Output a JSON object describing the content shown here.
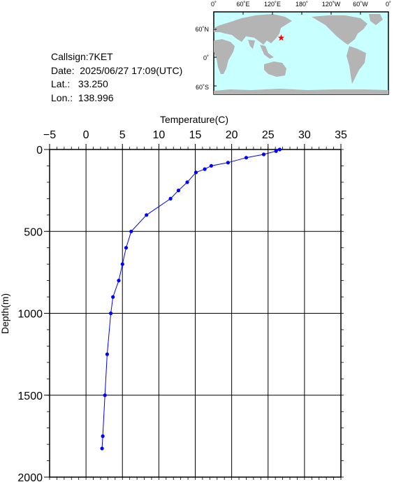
{
  "station": {
    "callsign_text": "Callsign:7KET",
    "date_text": "Date:  2025/06/27 17:09(UTC)",
    "lat_text": "Lat.:   33.250",
    "lon_text": "Lon.:  138.996",
    "callsign": "7KET",
    "date": "2025/06/27 17:09(UTC)",
    "lat": 33.25,
    "lon": 138.996
  },
  "map": {
    "lon_labels": [
      "0˚",
      "60˚E",
      "120˚E",
      "180˚",
      "120˚W",
      "60˚W",
      "0˚"
    ],
    "lat_labels": [
      "60˚N",
      "0˚",
      "60˚S"
    ],
    "ocean_color": "#c8ffff",
    "land_color": "#b4b4b4",
    "marker_color": "#ff0000",
    "marker_icon": "star-icon"
  },
  "chart_data": {
    "type": "line",
    "title": "",
    "xlabel": "Temperature(C)",
    "ylabel": "Depth(m)",
    "xlim": [
      -5,
      35
    ],
    "ylim": [
      0,
      2000
    ],
    "y_inverted": true,
    "x_axis_position": "top",
    "x_ticks": [
      -5,
      0,
      5,
      10,
      15,
      20,
      25,
      30,
      35
    ],
    "y_ticks": [
      0,
      500,
      1000,
      1500,
      2000
    ],
    "x_tick_labels": [
      "−5",
      "0",
      "5",
      "10",
      "15",
      "20",
      "25",
      "30",
      "35"
    ],
    "y_tick_labels": [
      "0",
      "500",
      "1000",
      "1500",
      "2000"
    ],
    "grid": true,
    "line_color": "#0000ff",
    "series": [
      {
        "temperature": [
          26.6,
          26.1,
          24.4,
          22.0,
          19.5,
          17.2,
          16.3,
          15.1,
          13.9,
          12.7,
          11.6,
          8.3,
          6.2,
          5.5,
          5.0,
          4.5,
          3.7,
          3.4,
          2.9,
          2.6,
          2.3,
          2.2
        ],
        "depth": [
          0,
          10,
          30,
          50,
          80,
          100,
          120,
          140,
          200,
          250,
          300,
          400,
          500,
          600,
          700,
          800,
          900,
          1000,
          1250,
          1500,
          1750,
          1825
        ]
      }
    ]
  }
}
